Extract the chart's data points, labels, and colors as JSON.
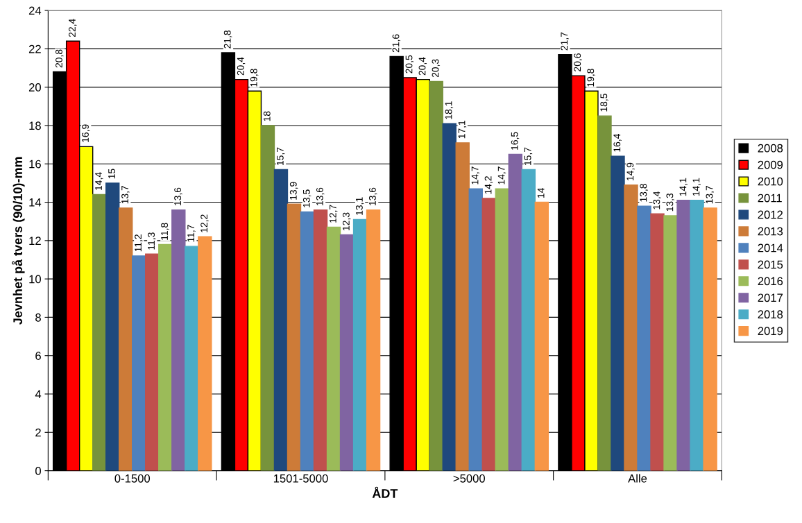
{
  "chart_data": {
    "type": "bar",
    "xlabel": "ÅDT",
    "ylabel": "Jevnhet på tvers (90/10)-mm",
    "categories": [
      "0-1500",
      "1501-5000",
      ">5000",
      "Alle"
    ],
    "ylim": [
      0,
      24
    ],
    "yticks": [
      0,
      2,
      4,
      6,
      8,
      10,
      12,
      14,
      16,
      18,
      20,
      22,
      24
    ],
    "grid": "y",
    "legend": "right",
    "series": [
      {
        "name": "2008",
        "color": "#000000",
        "values": [
          20.8,
          21.8,
          21.6,
          21.7
        ],
        "value_labels": [
          "20,8",
          "21,8",
          "21,6",
          "21,7"
        ]
      },
      {
        "name": "2009",
        "color": "#ff0000",
        "values": [
          22.4,
          20.4,
          20.5,
          20.6
        ],
        "value_labels": [
          "22,4",
          "20,4",
          "20,5",
          "20,6"
        ]
      },
      {
        "name": "2010",
        "color": "#ffff00",
        "values": [
          16.9,
          19.8,
          20.4,
          19.8
        ],
        "value_labels": [
          "16,9",
          "19,8",
          "20,4",
          "19,8"
        ]
      },
      {
        "name": "2011",
        "color": "#77933c",
        "values": [
          14.4,
          18,
          20.3,
          18.5
        ],
        "value_labels": [
          "14,4",
          "18",
          "20,3",
          "18,5"
        ]
      },
      {
        "name": "2012",
        "color": "#1f497d",
        "values": [
          15,
          15.7,
          18.1,
          16.4
        ],
        "value_labels": [
          "15",
          "15,7",
          "18,1",
          "16,4"
        ]
      },
      {
        "name": "2013",
        "color": "#cd7b38",
        "values": [
          13.7,
          13.9,
          17.1,
          14.9
        ],
        "value_labels": [
          "13,7",
          "13,9",
          "17,1",
          "14,9"
        ]
      },
      {
        "name": "2014",
        "color": "#4f81bd",
        "values": [
          11.2,
          13.5,
          14.7,
          13.8
        ],
        "value_labels": [
          "11,2",
          "13,5",
          "14,7",
          "13,8"
        ]
      },
      {
        "name": "2015",
        "color": "#c0504d",
        "values": [
          11.3,
          13.6,
          14.2,
          13.4
        ],
        "value_labels": [
          "11,3",
          "13,6",
          "14,2",
          "13,4"
        ]
      },
      {
        "name": "2016",
        "color": "#9bbb59",
        "values": [
          11.8,
          12.7,
          14.7,
          13.3
        ],
        "value_labels": [
          "11,8",
          "12,7",
          "14,7",
          "13,3"
        ]
      },
      {
        "name": "2017",
        "color": "#8064a2",
        "values": [
          13.6,
          12.3,
          16.5,
          14.1
        ],
        "value_labels": [
          "13,6",
          "12,3",
          "16,5",
          "14,1"
        ]
      },
      {
        "name": "2018",
        "color": "#4bacc6",
        "values": [
          11.7,
          13.1,
          15.7,
          14.1
        ],
        "value_labels": [
          "11,7",
          "13,1",
          "15,7",
          "14,1"
        ]
      },
      {
        "name": "2019",
        "color": "#f79646",
        "values": [
          12.2,
          13.6,
          14,
          13.7
        ],
        "value_labels": [
          "12,2",
          "13,6",
          "14",
          "13,7"
        ]
      }
    ]
  }
}
